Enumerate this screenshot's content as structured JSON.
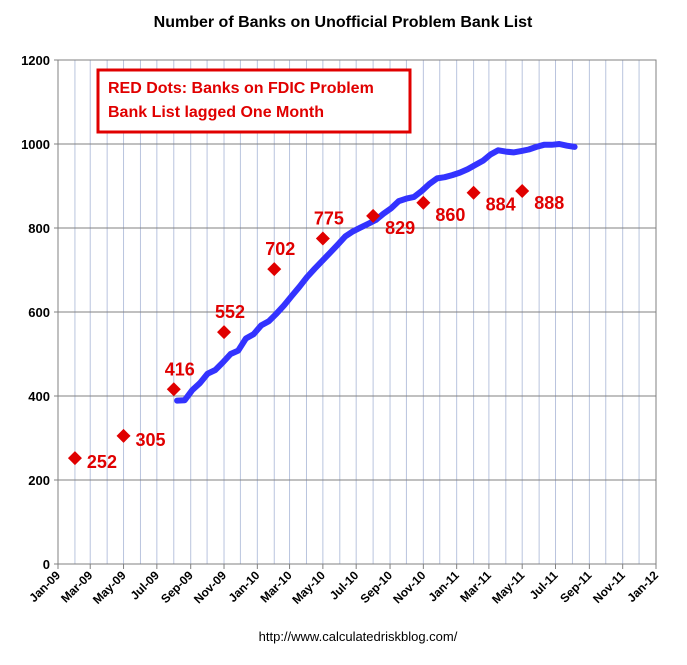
{
  "chart_data": {
    "type": "line",
    "title": "Number of Banks on Unofficial Problem Bank List",
    "source": "http://www.calculatedriskblog.com/",
    "annotation": [
      "RED Dots:  Banks on FDIC Problem",
      "Bank List  lagged One Month"
    ],
    "ylim": [
      0,
      1200
    ],
    "yticks": [
      0,
      200,
      400,
      600,
      800,
      1000,
      1200
    ],
    "x_axis_type": "date",
    "xlim": [
      "2009-01-01",
      "2012-01-01"
    ],
    "xticks": [
      {
        "date": "2009-01-01",
        "label": "Jan-09"
      },
      {
        "date": "2009-03-01",
        "label": "Mar-09"
      },
      {
        "date": "2009-05-01",
        "label": "May-09"
      },
      {
        "date": "2009-07-01",
        "label": "Jul-09"
      },
      {
        "date": "2009-09-01",
        "label": "Sep-09"
      },
      {
        "date": "2009-11-01",
        "label": "Nov-09"
      },
      {
        "date": "2010-01-01",
        "label": "Jan-10"
      },
      {
        "date": "2010-03-01",
        "label": "Mar-10"
      },
      {
        "date": "2010-05-01",
        "label": "May-10"
      },
      {
        "date": "2010-07-01",
        "label": "Jul-10"
      },
      {
        "date": "2010-09-01",
        "label": "Sep-10"
      },
      {
        "date": "2010-11-01",
        "label": "Nov-10"
      },
      {
        "date": "2011-01-01",
        "label": "Jan-11"
      },
      {
        "date": "2011-03-01",
        "label": "Mar-11"
      },
      {
        "date": "2011-05-01",
        "label": "May-11"
      },
      {
        "date": "2011-07-01",
        "label": "Jul-11"
      },
      {
        "date": "2011-09-01",
        "label": "Sep-11"
      },
      {
        "date": "2011-11-01",
        "label": "Nov-11"
      },
      {
        "date": "2012-01-01",
        "label": "Jan-12"
      }
    ],
    "grid": true,
    "series": [
      {
        "color": "#3333ff",
        "points": [
          [
            "2009-08-07",
            389
          ],
          [
            "2009-08-21",
            390
          ],
          [
            "2009-09-04",
            414
          ],
          [
            "2009-09-18",
            431
          ],
          [
            "2009-10-02",
            453
          ],
          [
            "2009-10-16",
            462
          ],
          [
            "2009-10-30",
            480
          ],
          [
            "2009-11-13",
            500
          ],
          [
            "2009-11-27",
            508
          ],
          [
            "2009-12-11",
            537
          ],
          [
            "2009-12-25",
            547
          ],
          [
            "2010-01-08",
            568
          ],
          [
            "2010-01-22",
            578
          ],
          [
            "2010-02-05",
            596
          ],
          [
            "2010-02-19",
            616
          ],
          [
            "2010-03-05",
            638
          ],
          [
            "2010-03-19",
            660
          ],
          [
            "2010-04-02",
            683
          ],
          [
            "2010-04-16",
            703
          ],
          [
            "2010-04-30",
            722
          ],
          [
            "2010-05-14",
            741
          ],
          [
            "2010-05-28",
            760
          ],
          [
            "2010-06-11",
            780
          ],
          [
            "2010-06-25",
            792
          ],
          [
            "2010-07-09",
            801
          ],
          [
            "2010-07-23",
            810
          ],
          [
            "2010-08-06",
            819
          ],
          [
            "2010-08-20",
            834
          ],
          [
            "2010-09-03",
            847
          ],
          [
            "2010-09-17",
            864
          ],
          [
            "2010-10-01",
            870
          ],
          [
            "2010-10-15",
            874
          ],
          [
            "2010-10-29",
            888
          ],
          [
            "2010-11-12",
            905
          ],
          [
            "2010-11-26",
            918
          ],
          [
            "2010-12-10",
            921
          ],
          [
            "2010-12-24",
            926
          ],
          [
            "2011-01-07",
            932
          ],
          [
            "2011-01-21",
            940
          ],
          [
            "2011-02-04",
            950
          ],
          [
            "2011-02-18",
            960
          ],
          [
            "2011-03-04",
            975
          ],
          [
            "2011-03-18",
            985
          ],
          [
            "2011-04-01",
            982
          ],
          [
            "2011-04-15",
            980
          ],
          [
            "2011-04-29",
            983
          ],
          [
            "2011-05-13",
            987
          ],
          [
            "2011-05-27",
            993
          ],
          [
            "2011-06-10",
            998
          ],
          [
            "2011-06-24",
            998
          ],
          [
            "2011-07-08",
            1000
          ],
          [
            "2011-07-22",
            996
          ],
          [
            "2011-08-05",
            993
          ]
        ]
      },
      {
        "color": "#e00000",
        "marker": "diamond",
        "points": [
          {
            "x": "2009-02-01",
            "y": 252,
            "label": "252"
          },
          {
            "x": "2009-05-01",
            "y": 305,
            "label": "305"
          },
          {
            "x": "2009-08-01",
            "y": 416,
            "label": "416"
          },
          {
            "x": "2009-11-01",
            "y": 552,
            "label": "552"
          },
          {
            "x": "2010-02-01",
            "y": 702,
            "label": "702"
          },
          {
            "x": "2010-05-01",
            "y": 775,
            "label": "775"
          },
          {
            "x": "2010-08-01",
            "y": 829,
            "label": "829"
          },
          {
            "x": "2010-11-01",
            "y": 860,
            "label": "860"
          },
          {
            "x": "2011-02-01",
            "y": 884,
            "label": "884"
          },
          {
            "x": "2011-05-01",
            "y": 888,
            "label": "888"
          }
        ]
      }
    ]
  }
}
